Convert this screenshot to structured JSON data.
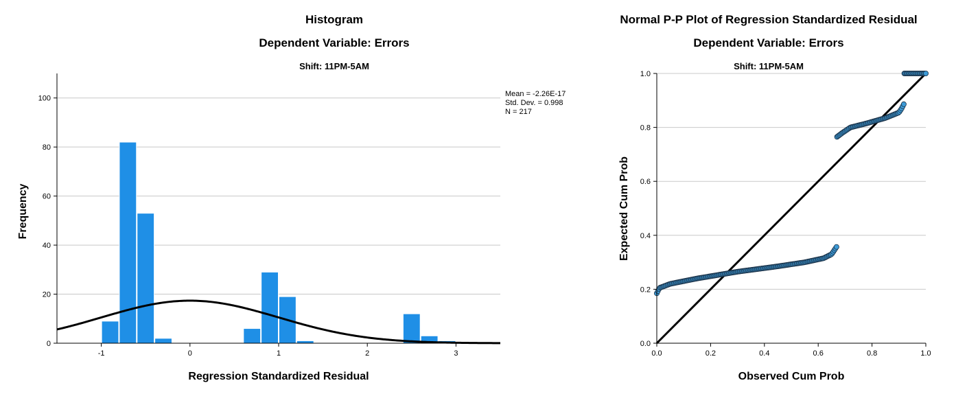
{
  "chart_data": [
    {
      "type": "bar",
      "title": "Histogram",
      "subtitle": "Dependent Variable: Errors",
      "panel_label": "Shift: 11PM-5AM",
      "xlabel": "Regression Standardized Residual",
      "ylabel": "Frequency",
      "xlim": [
        -1.5,
        3.5
      ],
      "ylim": [
        0,
        110
      ],
      "x_ticks": [
        -1,
        0,
        1,
        2,
        3
      ],
      "x_tick_labels": [
        "-1",
        "0",
        "1",
        "2",
        "3"
      ],
      "y_ticks": [
        0,
        20,
        40,
        60,
        80,
        100
      ],
      "y_tick_labels": [
        "0",
        "20",
        "40",
        "60",
        "80",
        "100"
      ],
      "grid": true,
      "bar_color": "#1f8fe6",
      "bins": [
        {
          "x0": -1.0,
          "x1": -0.8,
          "count": 9
        },
        {
          "x0": -0.8,
          "x1": -0.6,
          "count": 82
        },
        {
          "x0": -0.6,
          "x1": -0.4,
          "count": 53
        },
        {
          "x0": -0.4,
          "x1": -0.2,
          "count": 2
        },
        {
          "x0": 0.6,
          "x1": 0.8,
          "count": 6
        },
        {
          "x0": 0.8,
          "x1": 1.0,
          "count": 29
        },
        {
          "x0": 1.0,
          "x1": 1.2,
          "count": 19
        },
        {
          "x0": 1.2,
          "x1": 1.4,
          "count": 1
        },
        {
          "x0": 2.4,
          "x1": 2.6,
          "count": 12
        },
        {
          "x0": 2.6,
          "x1": 2.8,
          "count": 3
        },
        {
          "x0": 2.8,
          "x1": 3.0,
          "count": 1
        }
      ],
      "normal_curve": {
        "mean": 0,
        "std": 0.998,
        "n": 217,
        "bin_width": 0.2
      },
      "stats": [
        "Mean = -2.26E-17",
        "Std. Dev. = 0.998",
        "N = 217"
      ]
    },
    {
      "type": "scatter",
      "title": "Normal P-P Plot of Regression Standardized Residual",
      "subtitle": "Dependent Variable: Errors",
      "panel_label": "Shift: 11PM-5AM",
      "xlabel": "Observed Cum Prob",
      "ylabel": "Expected Cum Prob",
      "xlim": [
        0,
        1
      ],
      "ylim": [
        0,
        1
      ],
      "x_ticks": [
        0,
        0.2,
        0.4,
        0.6,
        0.8,
        1.0
      ],
      "x_tick_labels": [
        "0.0",
        "0.2",
        "0.4",
        "0.6",
        "0.8",
        "1.0"
      ],
      "y_ticks": [
        0,
        0.2,
        0.4,
        0.6,
        0.8,
        1.0
      ],
      "y_tick_labels": [
        "0.0",
        "0.2",
        "0.4",
        "0.6",
        "0.8",
        "1.0"
      ],
      "grid": true,
      "point_color": "#3d9ad6",
      "reference_line": [
        [
          0,
          0
        ],
        [
          1,
          1
        ]
      ],
      "segments": [
        {
          "x_start": 0.0,
          "x_end": 0.67,
          "y_start": 0.185,
          "y_end": 0.36,
          "anchors": [
            [
              0.0,
              0.185
            ],
            [
              0.01,
              0.205
            ],
            [
              0.05,
              0.22
            ],
            [
              0.15,
              0.24
            ],
            [
              0.3,
              0.265
            ],
            [
              0.45,
              0.285
            ],
            [
              0.55,
              0.3
            ],
            [
              0.62,
              0.315
            ],
            [
              0.65,
              0.33
            ],
            [
              0.67,
              0.36
            ]
          ]
        },
        {
          "x_start": 0.67,
          "x_end": 0.92,
          "y_start": 0.765,
          "y_end": 0.89,
          "anchors": [
            [
              0.67,
              0.765
            ],
            [
              0.69,
              0.78
            ],
            [
              0.72,
              0.8
            ],
            [
              0.78,
              0.815
            ],
            [
              0.85,
              0.835
            ],
            [
              0.9,
              0.855
            ],
            [
              0.91,
              0.87
            ],
            [
              0.92,
              0.89
            ]
          ]
        },
        {
          "x_start": 0.92,
          "x_end": 1.0,
          "y_start": 1.0,
          "y_end": 1.0,
          "anchors": [
            [
              0.92,
              1.0
            ],
            [
              1.0,
              1.0
            ]
          ]
        }
      ]
    }
  ]
}
